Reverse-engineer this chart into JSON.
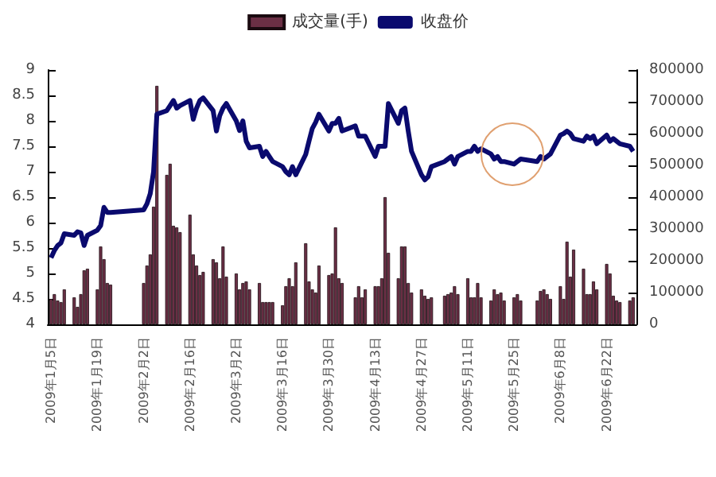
{
  "chart_data": {
    "type": "bar",
    "x": [
      "2009-01-05",
      "2009-01-06",
      "2009-01-07",
      "2009-01-08",
      "2009-01-09",
      "2009-01-12",
      "2009-01-13",
      "2009-01-14",
      "2009-01-15",
      "2009-01-16",
      "2009-01-19",
      "2009-01-20",
      "2009-01-21",
      "2009-01-22",
      "2009-01-23",
      "2009-02-02",
      "2009-02-03",
      "2009-02-04",
      "2009-02-05",
      "2009-02-06",
      "2009-02-09",
      "2009-02-10",
      "2009-02-11",
      "2009-02-12",
      "2009-02-13",
      "2009-02-16",
      "2009-02-17",
      "2009-02-18",
      "2009-02-19",
      "2009-02-20",
      "2009-02-23",
      "2009-02-24",
      "2009-02-25",
      "2009-02-26",
      "2009-02-27",
      "2009-03-02",
      "2009-03-03",
      "2009-03-04",
      "2009-03-05",
      "2009-03-06",
      "2009-03-09",
      "2009-03-10",
      "2009-03-11",
      "2009-03-12",
      "2009-03-13",
      "2009-03-16",
      "2009-03-17",
      "2009-03-18",
      "2009-03-19",
      "2009-03-20",
      "2009-03-23",
      "2009-03-24",
      "2009-03-25",
      "2009-03-26",
      "2009-03-27",
      "2009-03-30",
      "2009-03-31",
      "2009-04-01",
      "2009-04-02",
      "2009-04-03",
      "2009-04-07",
      "2009-04-08",
      "2009-04-09",
      "2009-04-10",
      "2009-04-13",
      "2009-04-14",
      "2009-04-15",
      "2009-04-16",
      "2009-04-17",
      "2009-04-20",
      "2009-04-21",
      "2009-04-22",
      "2009-04-23",
      "2009-04-24",
      "2009-04-27",
      "2009-04-28",
      "2009-04-29",
      "2009-04-30",
      "2009-05-04",
      "2009-05-05",
      "2009-05-06",
      "2009-05-07",
      "2009-05-08",
      "2009-05-11",
      "2009-05-12",
      "2009-05-13",
      "2009-05-14",
      "2009-05-15",
      "2009-05-18",
      "2009-05-19",
      "2009-05-20",
      "2009-05-21",
      "2009-05-22",
      "2009-05-25",
      "2009-05-26",
      "2009-05-27",
      "2009-06-01",
      "2009-06-02",
      "2009-06-03",
      "2009-06-04",
      "2009-06-05",
      "2009-06-08",
      "2009-06-09",
      "2009-06-10",
      "2009-06-11",
      "2009-06-12",
      "2009-06-15",
      "2009-06-16",
      "2009-06-17",
      "2009-06-18",
      "2009-06-19",
      "2009-06-22",
      "2009-06-23",
      "2009-06-24",
      "2009-06-25",
      "2009-06-26",
      "2009-06-29",
      "2009-06-30"
    ],
    "series": [
      {
        "name": "成交量(手)",
        "axis": "y2",
        "color": "#6b2f45",
        "values": [
          80000,
          95000,
          75000,
          70000,
          110000,
          85000,
          55000,
          95000,
          170000,
          175000,
          110000,
          245000,
          205000,
          130000,
          125000,
          130000,
          185000,
          220000,
          370000,
          750000,
          470000,
          505000,
          310000,
          305000,
          290000,
          345000,
          220000,
          185000,
          155000,
          165000,
          205000,
          195000,
          145000,
          245000,
          150000,
          160000,
          110000,
          130000,
          135000,
          110000,
          130000,
          70000,
          70000,
          70000,
          70000,
          60000,
          120000,
          145000,
          120000,
          195000,
          255000,
          135000,
          110000,
          100000,
          185000,
          155000,
          160000,
          305000,
          145000,
          130000,
          85000,
          120000,
          85000,
          110000,
          120000,
          120000,
          145000,
          400000,
          225000,
          145000,
          245000,
          245000,
          130000,
          100000,
          110000,
          90000,
          80000,
          85000,
          90000,
          95000,
          100000,
          120000,
          95000,
          145000,
          85000,
          85000,
          130000,
          85000,
          75000,
          110000,
          95000,
          100000,
          75000,
          85000,
          95000,
          75000,
          75000,
          105000,
          110000,
          95000,
          80000,
          120000,
          80000,
          260000,
          150000,
          235000,
          175000,
          95000,
          95000,
          135000,
          110000,
          190000,
          160000,
          90000,
          75000,
          70000,
          75000,
          85000
        ]
      },
      {
        "name": "收盘价",
        "type": "line",
        "color": "#0a0a6e",
        "values": [
          5.31,
          5.45,
          5.55,
          5.6,
          5.78,
          5.75,
          5.82,
          5.8,
          5.55,
          5.75,
          5.85,
          5.94,
          6.3,
          6.2,
          6.2,
          6.25,
          6.37,
          6.57,
          7.0,
          8.13,
          8.2,
          8.3,
          8.4,
          8.25,
          8.3,
          8.4,
          8.03,
          8.25,
          8.4,
          8.45,
          8.2,
          7.8,
          8.1,
          8.25,
          8.34,
          8.0,
          7.81,
          8.0,
          7.6,
          7.47,
          7.5,
          7.3,
          7.4,
          7.3,
          7.2,
          7.1,
          7.0,
          6.94,
          7.1,
          6.94,
          7.34,
          7.6,
          7.85,
          7.97,
          8.13,
          7.8,
          7.95,
          7.95,
          8.05,
          7.8,
          7.9,
          7.7,
          7.7,
          7.7,
          7.3,
          7.5,
          7.5,
          7.5,
          8.34,
          7.95,
          8.2,
          8.25,
          7.8,
          7.4,
          6.94,
          6.84,
          6.9,
          7.1,
          7.2,
          7.25,
          7.3,
          7.15,
          7.3,
          7.4,
          7.4,
          7.5,
          7.4,
          7.45,
          7.35,
          7.25,
          7.3,
          7.2,
          7.2,
          7.15,
          7.2,
          7.25,
          7.2,
          7.3,
          7.25,
          7.3,
          7.35,
          7.72,
          7.75,
          7.8,
          7.75,
          7.65,
          7.6,
          7.7,
          7.65,
          7.7,
          7.55,
          7.72,
          7.6,
          7.65,
          7.6,
          7.55,
          7.5,
          7.4
        ]
      }
    ],
    "xlim": [
      "2009-01-04",
      "2009-07-01"
    ],
    "xticks": [
      {
        "value": "2009-01-05",
        "label": "2009年1月5日"
      },
      {
        "value": "2009-01-19",
        "label": "2009年1月19日"
      },
      {
        "value": "2009-02-02",
        "label": "2009年2月2日"
      },
      {
        "value": "2009-02-16",
        "label": "2009年2月16日"
      },
      {
        "value": "2009-03-02",
        "label": "2009年3月2日"
      },
      {
        "value": "2009-03-16",
        "label": "2009年3月16日"
      },
      {
        "value": "2009-03-30",
        "label": "2009年3月30日"
      },
      {
        "value": "2009-04-13",
        "label": "2009年4月13日"
      },
      {
        "value": "2009-04-27",
        "label": "2009年4月27日"
      },
      {
        "value": "2009-05-11",
        "label": "2009年5月11日"
      },
      {
        "value": "2009-05-25",
        "label": "2009年5月25日"
      },
      {
        "value": "2009-06-08",
        "label": "2009年6月8日"
      },
      {
        "value": "2009-06-22",
        "label": "2009年6月22日"
      }
    ],
    "ylim": [
      4,
      9
    ],
    "yticks": [
      4,
      4.5,
      5,
      5.5,
      6,
      6.5,
      7,
      7.5,
      8,
      8.5,
      9
    ],
    "y2lim": [
      0,
      800000
    ],
    "y2ticks": [
      0,
      100000,
      200000,
      300000,
      400000,
      500000,
      600000,
      700000,
      800000
    ],
    "legend": "top",
    "grid": false,
    "marker": "none",
    "line_style": "solid"
  }
}
